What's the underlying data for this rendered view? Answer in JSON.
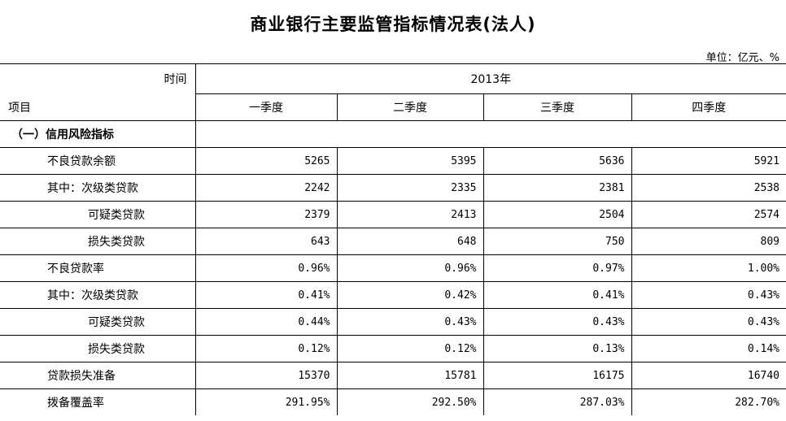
{
  "title": "商业银行主要监管指标情况表(法人)",
  "unit": "单位：亿元、%",
  "header": {
    "time_label": "时间",
    "year": "2013年",
    "item_label": "项目",
    "quarters": [
      "一季度",
      "二季度",
      "三季度",
      "四季度"
    ]
  },
  "section": "（一）信用风险指标",
  "rows": [
    {
      "label": "不良贷款余额",
      "values": [
        "5265",
        "5395",
        "5636",
        "5921"
      ]
    },
    {
      "label": "其中：次级类贷款",
      "values": [
        "2242",
        "2335",
        "2381",
        "2538"
      ]
    },
    {
      "label": "可疑类贷款",
      "values": [
        "2379",
        "2413",
        "2504",
        "2574"
      ]
    },
    {
      "label": "损失类贷款",
      "values": [
        "643",
        "648",
        "750",
        "809"
      ]
    },
    {
      "label": "不良贷款率",
      "values": [
        "0.96%",
        "0.96%",
        "0.97%",
        "1.00%"
      ]
    },
    {
      "label": "其中：次级类贷款",
      "values": [
        "0.41%",
        "0.42%",
        "0.41%",
        "0.43%"
      ]
    },
    {
      "label": "可疑类贷款",
      "values": [
        "0.44%",
        "0.43%",
        "0.43%",
        "0.43%"
      ]
    },
    {
      "label": "损失类贷款",
      "values": [
        "0.12%",
        "0.12%",
        "0.13%",
        "0.14%"
      ]
    },
    {
      "label": "贷款损失准备",
      "values": [
        "15370",
        "15781",
        "16175",
        "16740"
      ]
    },
    {
      "label": "拨备覆盖率",
      "values": [
        "291.95%",
        "292.50%",
        "287.03%",
        "282.70%"
      ]
    }
  ]
}
